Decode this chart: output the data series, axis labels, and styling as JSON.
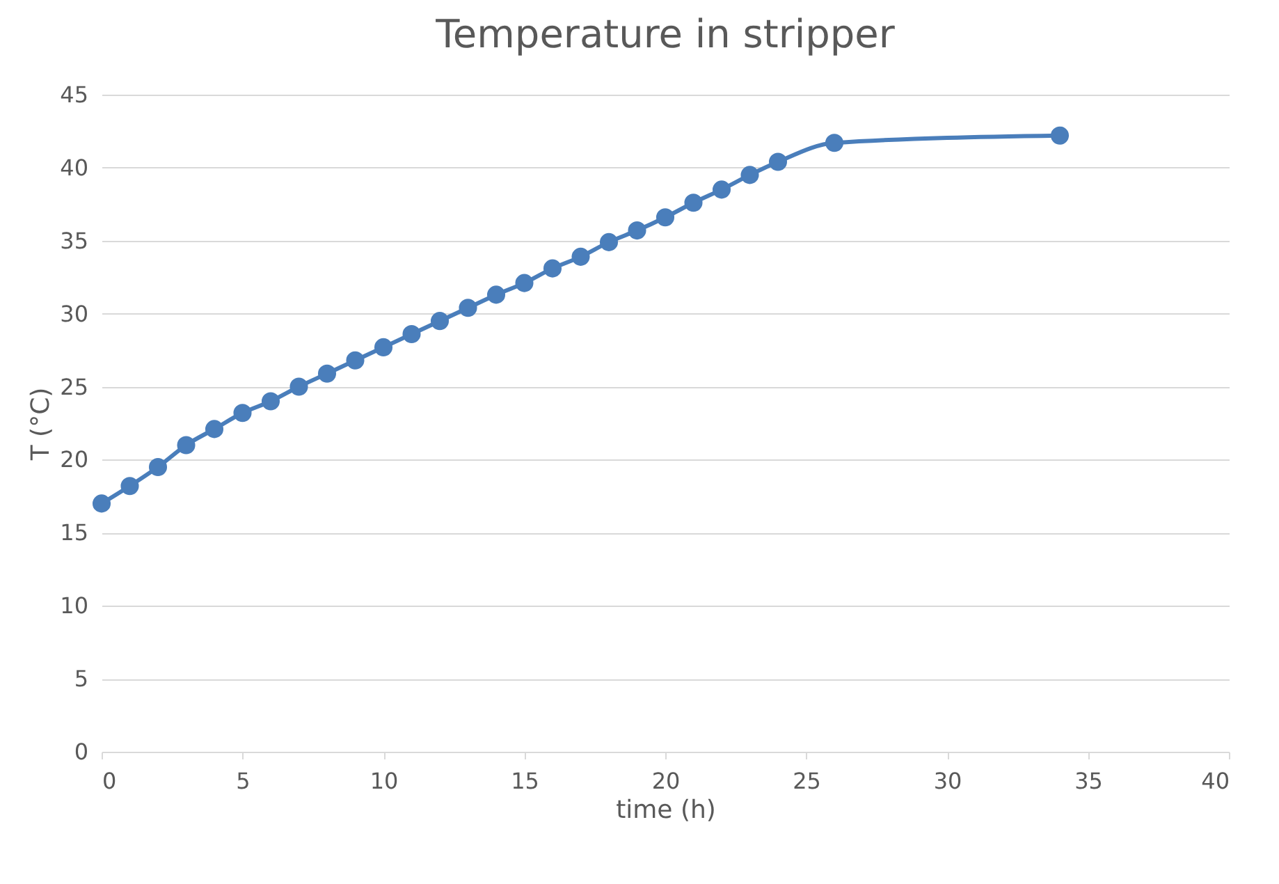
{
  "chart_data": {
    "type": "line",
    "title": "Temperature in stripper",
    "xlabel": "time (h)",
    "ylabel": "T (°C)",
    "x": [
      0,
      1,
      2,
      3,
      4,
      5,
      6,
      7,
      8,
      9,
      10,
      11,
      12,
      13,
      14,
      15,
      16,
      17,
      18,
      19,
      20,
      21,
      22,
      23,
      24,
      26,
      34
    ],
    "series": [
      {
        "color": "#4a7ebb",
        "values": [
          17.0,
          18.2,
          19.5,
          21.0,
          22.1,
          23.2,
          24.0,
          25.0,
          25.9,
          26.8,
          27.7,
          28.6,
          29.5,
          30.4,
          31.3,
          32.1,
          33.1,
          33.9,
          34.9,
          35.7,
          36.6,
          37.6,
          38.5,
          39.5,
          40.4,
          41.7,
          42.2
        ]
      }
    ],
    "xlim": [
      0,
      40
    ],
    "xticks": [
      0,
      5,
      10,
      15,
      20,
      25,
      30,
      35,
      40
    ],
    "ylim": [
      0,
      45
    ],
    "yticks": [
      0,
      5,
      10,
      15,
      20,
      25,
      30,
      35,
      40,
      45
    ],
    "grid": "y",
    "marker": "circle",
    "line_style": "solid"
  }
}
